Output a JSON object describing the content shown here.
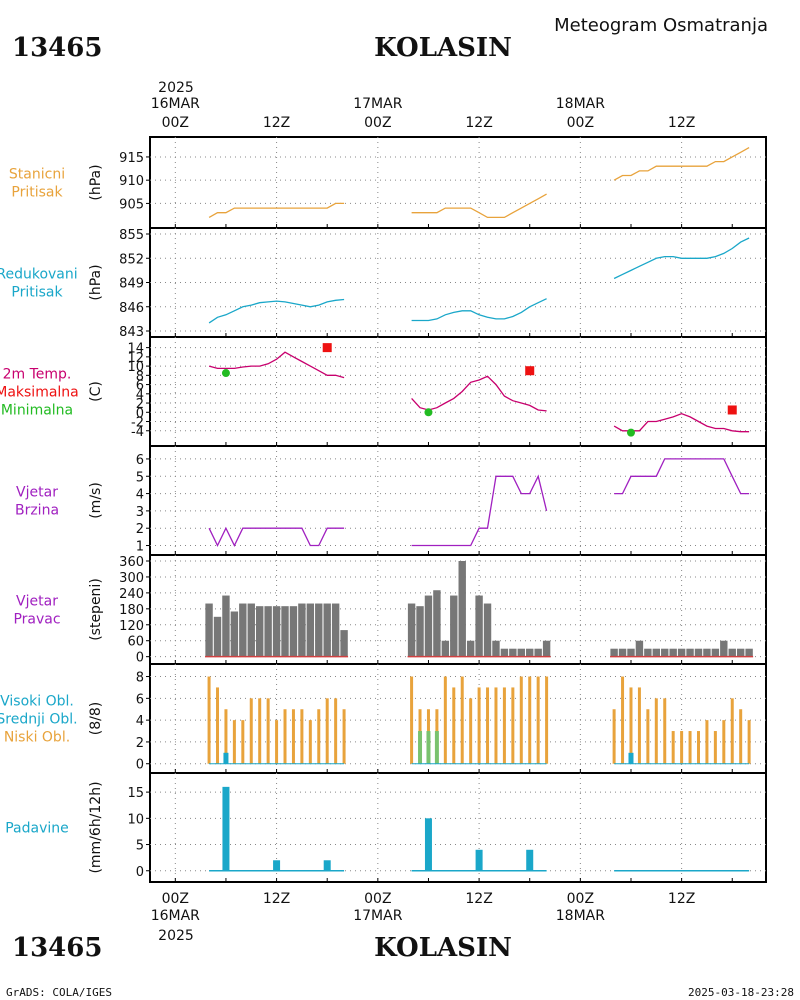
{
  "header": {
    "station_id": "13465",
    "station_name": "KOLASIN",
    "subtitle": "Meteogram Osmatranja"
  },
  "footer": {
    "credit": "GrADS: COLA/IGES",
    "timestamp": "2025-03-18-23:28"
  },
  "time_axis": {
    "year": "2025",
    "day_labels": [
      "16MAR",
      "17MAR",
      "18MAR"
    ],
    "hour_labels": [
      "00Z",
      "12Z",
      "00Z",
      "12Z",
      "00Z",
      "12Z"
    ],
    "hour_offsets": [
      0,
      12,
      24,
      36,
      48,
      60
    ],
    "range_hours": [
      -3,
      70
    ]
  },
  "chart_data": [
    {
      "type": "line",
      "panel": "stanicni-pritisak",
      "labels": [
        "Stanicni",
        "Pritisak"
      ],
      "label_colors": [
        "#e8a33c",
        "#e8a33c"
      ],
      "ylabel": "(hPa)",
      "ylim": [
        901,
        918
      ],
      "yticks": [
        905,
        910,
        915
      ],
      "color": "#e8a33c",
      "series": [
        {
          "x": [
            4,
            5,
            6,
            7,
            8,
            9,
            10,
            11,
            12,
            13,
            14,
            15,
            16,
            17,
            18,
            19,
            20
          ],
          "y": [
            902,
            903,
            903,
            904,
            904,
            904,
            904,
            904,
            904,
            904,
            904,
            904,
            904,
            904,
            904,
            905,
            905
          ]
        },
        {
          "x": [
            28,
            29,
            30,
            31,
            32,
            33,
            34,
            35,
            36,
            37,
            38,
            39,
            40,
            41,
            42,
            43,
            44
          ],
          "y": [
            903,
            903,
            903,
            903,
            904,
            904,
            904,
            904,
            903,
            902,
            902,
            902,
            903,
            904,
            905,
            906,
            907
          ]
        },
        {
          "x": [
            52,
            53,
            54,
            55,
            56,
            57,
            58,
            59,
            60,
            61,
            62,
            63,
            64,
            65,
            66,
            67,
            68
          ],
          "y": [
            910,
            911,
            911,
            912,
            912,
            913,
            913,
            913,
            913,
            913,
            913,
            913,
            914,
            914,
            915,
            916,
            917
          ]
        }
      ]
    },
    {
      "type": "line",
      "panel": "redukovani-pritisak",
      "labels": [
        "Redukovani",
        "Pritisak"
      ],
      "label_colors": [
        "#1aa7c9",
        "#1aa7c9"
      ],
      "ylabel": "(hPa)",
      "ylim": [
        843,
        855
      ],
      "yticks": [
        843,
        846,
        849,
        852,
        855
      ],
      "color": "#1aa7c9",
      "series": [
        {
          "x": [
            4,
            5,
            6,
            7,
            8,
            9,
            10,
            11,
            12,
            13,
            14,
            15,
            16,
            17,
            18,
            19,
            20
          ],
          "y": [
            844,
            844.7,
            845,
            845.5,
            846,
            846.2,
            846.5,
            846.6,
            846.7,
            846.6,
            846.4,
            846.2,
            846,
            846.2,
            846.6,
            846.8,
            846.9
          ]
        },
        {
          "x": [
            28,
            29,
            30,
            31,
            32,
            33,
            34,
            35,
            36,
            37,
            38,
            39,
            40,
            41,
            42,
            43,
            44
          ],
          "y": [
            844.3,
            844.3,
            844.3,
            844.5,
            845,
            845.3,
            845.5,
            845.5,
            845,
            844.7,
            844.5,
            844.5,
            844.8,
            845.3,
            846,
            846.5,
            847
          ]
        },
        {
          "x": [
            52,
            53,
            54,
            55,
            56,
            57,
            58,
            59,
            60,
            61,
            62,
            63,
            64,
            65,
            66,
            67,
            68
          ],
          "y": [
            849.5,
            850,
            850.5,
            851,
            851.5,
            852,
            852.2,
            852.2,
            852,
            852,
            852,
            852,
            852.2,
            852.6,
            853.2,
            854,
            854.5
          ]
        }
      ]
    },
    {
      "type": "line",
      "panel": "temperatura",
      "labels": [
        "2m Temp.",
        "Maksimalna",
        "Minimalna"
      ],
      "label_colors": [
        "#c8006e",
        "#ee1111",
        "#22bb22"
      ],
      "ylabel": "(C)",
      "ylim": [
        -6,
        15
      ],
      "yticks": [
        -4,
        -2,
        0,
        2,
        4,
        6,
        8,
        10,
        12,
        14
      ],
      "color": "#c8006e",
      "series": [
        {
          "x": [
            4,
            5,
            6,
            7,
            8,
            9,
            10,
            11,
            12,
            13,
            14,
            15,
            16,
            17,
            18,
            19,
            20
          ],
          "y": [
            10,
            9.5,
            9.5,
            9.5,
            9.8,
            10,
            10,
            10.5,
            11.5,
            13,
            12,
            11,
            10,
            9,
            8,
            8,
            7.5
          ]
        },
        {
          "x": [
            28,
            29,
            30,
            31,
            32,
            33,
            34,
            35,
            36,
            37,
            38,
            39,
            40,
            41,
            42,
            43,
            44
          ],
          "y": [
            3,
            1,
            0.5,
            1,
            2,
            3,
            4.5,
            6.5,
            7,
            7.8,
            6,
            3.5,
            2.5,
            2,
            1.5,
            0.5,
            0.3
          ]
        },
        {
          "x": [
            52,
            53,
            54,
            55,
            56,
            57,
            58,
            59,
            60,
            61,
            62,
            63,
            64,
            65,
            66,
            67,
            68
          ],
          "y": [
            -3,
            -4,
            -4,
            -4,
            -2,
            -2,
            -1.5,
            -1,
            -0.3,
            -1,
            -2,
            -3,
            -3.5,
            -3.5,
            -4,
            -4.2,
            -4.2
          ]
        }
      ],
      "max_points": {
        "x": [
          18,
          42,
          66
        ],
        "y": [
          14,
          9,
          0.5
        ],
        "color": "#ee1111"
      },
      "min_points": {
        "x": [
          6,
          30,
          54
        ],
        "y": [
          8.5,
          0,
          -4.4
        ],
        "color": "#22bb22"
      }
    },
    {
      "type": "line",
      "panel": "vjetar-brzina",
      "labels": [
        "Vjetar",
        "Brzina"
      ],
      "label_colors": [
        "#a020c0",
        "#a020c0"
      ],
      "ylabel": "(m/s)",
      "ylim": [
        0.8,
        6.4
      ],
      "yticks": [
        1,
        2,
        3,
        4,
        5,
        6
      ],
      "color": "#a020c0",
      "series": [
        {
          "x": [
            4,
            5,
            6,
            7,
            8,
            9,
            10,
            11,
            12,
            13,
            14,
            15,
            16,
            17,
            18,
            19,
            20
          ],
          "y": [
            2,
            1,
            2,
            1,
            2,
            2,
            2,
            2,
            2,
            2,
            2,
            2,
            1,
            1,
            2,
            2,
            2
          ]
        },
        {
          "x": [
            28,
            29,
            30,
            31,
            32,
            33,
            34,
            35,
            36,
            37,
            38,
            39,
            40,
            41,
            42,
            43,
            44
          ],
          "y": [
            1,
            1,
            1,
            1,
            1,
            1,
            1,
            1,
            2,
            2,
            5,
            5,
            5,
            4,
            4,
            5,
            3
          ]
        },
        {
          "x": [
            52,
            53,
            54,
            55,
            56,
            57,
            58,
            59,
            60,
            61,
            62,
            63,
            64,
            65,
            66,
            67,
            68
          ],
          "y": [
            4,
            4,
            5,
            5,
            5,
            5,
            6,
            6,
            6,
            6,
            6,
            6,
            6,
            6,
            5,
            4,
            4
          ]
        }
      ]
    },
    {
      "type": "bar",
      "panel": "vjetar-pravac",
      "labels": [
        "Vjetar",
        "Pravac"
      ],
      "label_colors": [
        "#a020c0",
        "#a020c0"
      ],
      "ylabel": "(stepeni)",
      "ylim": [
        -5,
        360
      ],
      "yticks": [
        0,
        60,
        120,
        180,
        240,
        300,
        360
      ],
      "color": "#777777",
      "baseline_color": "#d04040",
      "series": [
        {
          "x": [
            4,
            5,
            6,
            7,
            8,
            9,
            10,
            11,
            12,
            13,
            14,
            15,
            16,
            17,
            18,
            19,
            20
          ],
          "y": [
            200,
            150,
            230,
            170,
            200,
            200,
            190,
            190,
            190,
            190,
            190,
            200,
            200,
            200,
            200,
            200,
            100
          ]
        },
        {
          "x": [
            28,
            29,
            30,
            31,
            32,
            33,
            34,
            35,
            36,
            37,
            38,
            39,
            40,
            41,
            42,
            43,
            44
          ],
          "y": [
            200,
            190,
            230,
            250,
            60,
            230,
            360,
            60,
            230,
            200,
            60,
            30,
            30,
            30,
            30,
            30,
            60
          ]
        },
        {
          "x": [
            52,
            53,
            54,
            55,
            56,
            57,
            58,
            59,
            60,
            61,
            62,
            63,
            64,
            65,
            66,
            67,
            68
          ],
          "y": [
            30,
            30,
            30,
            60,
            30,
            30,
            30,
            30,
            30,
            30,
            30,
            30,
            30,
            60,
            30,
            30,
            30
          ]
        }
      ]
    },
    {
      "type": "bar",
      "panel": "oblacnost",
      "labels": [
        "Visoki Obl.",
        "Srednji Obl.",
        "Niski Obl."
      ],
      "label_colors": [
        "#1aa7c9",
        "#1aa7c9",
        "#e8a33c"
      ],
      "ylabel": "(8/8)",
      "ylim": [
        -0.3,
        8.6
      ],
      "yticks": [
        0,
        2,
        4,
        6,
        8
      ],
      "series": [
        {
          "name": "Niski Obl.",
          "color": "#e8a33c",
          "x": [
            4,
            5,
            6,
            7,
            8,
            9,
            10,
            11,
            12,
            13,
            14,
            15,
            16,
            17,
            18,
            19,
            20,
            28,
            29,
            30,
            31,
            32,
            33,
            34,
            35,
            36,
            37,
            38,
            39,
            40,
            41,
            42,
            43,
            44,
            52,
            53,
            54,
            55,
            56,
            57,
            58,
            59,
            60,
            61,
            62,
            63,
            64,
            65,
            66,
            67,
            68
          ],
          "y": [
            8,
            7,
            5,
            4,
            4,
            6,
            6,
            6,
            4,
            5,
            5,
            5,
            4,
            5,
            6,
            6,
            5,
            8,
            5,
            5,
            5,
            8,
            7,
            8,
            6,
            7,
            7,
            7,
            7,
            7,
            8,
            8,
            8,
            8,
            5,
            8,
            7,
            7,
            5,
            6,
            6,
            3,
            3,
            3,
            3,
            4,
            3,
            4,
            6,
            5,
            4
          ]
        },
        {
          "name": "Srednji Obl.",
          "color": "#7ac26e",
          "x": [
            6,
            29,
            30,
            31
          ],
          "y": [
            1,
            3,
            3,
            3
          ]
        },
        {
          "name": "Visoki Obl.",
          "color": "#1aa7c9",
          "x": [
            6,
            54
          ],
          "y": [
            1,
            1
          ]
        }
      ]
    },
    {
      "type": "bar",
      "panel": "padavine",
      "labels": [
        "Padavine"
      ],
      "label_colors": [
        "#1aa7c9"
      ],
      "ylabel": "(mm/6h/12h)",
      "ylim": [
        -1,
        17.5
      ],
      "yticks": [
        0,
        5,
        10,
        15
      ],
      "color": "#1aa7c9",
      "bars": {
        "x": [
          6,
          12,
          18,
          30,
          36,
          42
        ],
        "y": [
          16,
          2,
          2,
          10,
          4,
          4
        ]
      },
      "zero_segments": [
        [
          4,
          20
        ],
        [
          28,
          44
        ],
        [
          52,
          68
        ]
      ]
    }
  ]
}
